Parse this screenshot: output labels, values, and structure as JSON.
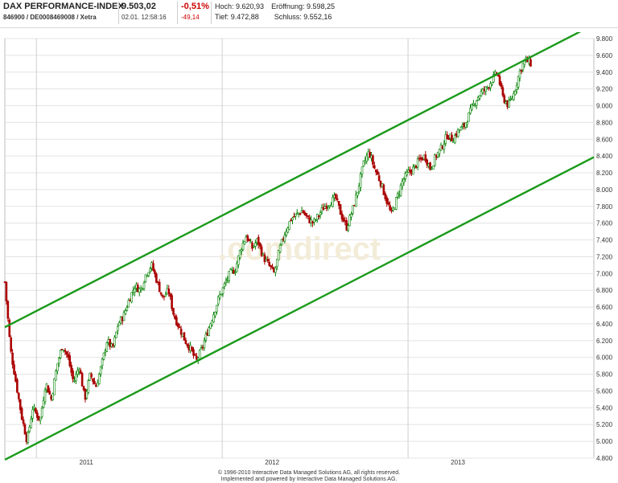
{
  "header": {
    "title": "DAX PERFORMANCE-INDEX",
    "identifier": "846900 / DE0008469008 / Xetra",
    "price": "9.503,02",
    "timestamp": "02.01. 12:58:16",
    "change_pct": "-0,51%",
    "change_abs": "-49,14",
    "high_label": "Hoch:",
    "high_value": "9.620,93",
    "open_label": "Eröffnung:",
    "open_value": "9.598,25",
    "low_label": "Tief:",
    "low_value": "9.472,88",
    "close_label": "Schluss:",
    "close_value": "9.552,16"
  },
  "watermark": ".comdirect",
  "footer": {
    "line1": "© 1996-2010 Interactive Data Managed Solutions AG, all rights reserved.",
    "line2": "Implemented and powered by Interactive Data Managed Solutions AG."
  },
  "colors": {
    "up": "#008000",
    "down": "#aa0000",
    "channel": "#1a9a1a",
    "grid": "#e3e3e3"
  },
  "chart_data": {
    "type": "candlestick",
    "title": "",
    "xlabel": "",
    "ylabel": "",
    "ylim": [
      4800,
      9800
    ],
    "xlim": [
      2010.83,
      2014.0
    ],
    "grid": true,
    "x_ticks": [
      {
        "label": "2011",
        "x": 2011.0
      },
      {
        "label": "2012",
        "x": 2012.0
      },
      {
        "label": "2013",
        "x": 2013.0
      }
    ],
    "y_ticks": [
      {
        "label": "4.800",
        "value": 4800
      },
      {
        "label": "5.000",
        "value": 5000
      },
      {
        "label": "5.200",
        "value": 5200
      },
      {
        "label": "5.400",
        "value": 5400
      },
      {
        "label": "5.600",
        "value": 5600
      },
      {
        "label": "5.800",
        "value": 5800
      },
      {
        "label": "6.000",
        "value": 6000
      },
      {
        "label": "6.200",
        "value": 6200
      },
      {
        "label": "6.400",
        "value": 6400
      },
      {
        "label": "6.600",
        "value": 6600
      },
      {
        "label": "6.800",
        "value": 6800
      },
      {
        "label": "7.000",
        "value": 7000
      },
      {
        "label": "7.200",
        "value": 7200
      },
      {
        "label": "7.400",
        "value": 7400
      },
      {
        "label": "7.600",
        "value": 7600
      },
      {
        "label": "7.800",
        "value": 7800
      },
      {
        "label": "8.000",
        "value": 8000
      },
      {
        "label": "8.200",
        "value": 8200
      },
      {
        "label": "8.400",
        "value": 8400
      },
      {
        "label": "8.600",
        "value": 8600
      },
      {
        "label": "8.800",
        "value": 8800
      },
      {
        "label": "9.000",
        "value": 9000
      },
      {
        "label": "9.200",
        "value": 9200
      },
      {
        "label": "9.400",
        "value": 9400
      },
      {
        "label": "9.600",
        "value": 9600
      },
      {
        "label": "9.800",
        "value": 9800
      }
    ],
    "series": [
      {
        "points": [
          [
            2010.83,
            6900
          ],
          [
            2010.86,
            6100
          ],
          [
            2010.89,
            5700
          ],
          [
            2010.92,
            5300
          ],
          [
            2010.95,
            5000
          ],
          [
            2010.98,
            5400
          ],
          [
            2011.02,
            5250
          ],
          [
            2011.05,
            5700
          ],
          [
            2011.08,
            5500
          ],
          [
            2011.11,
            5900
          ],
          [
            2011.14,
            6150
          ],
          [
            2011.17,
            6000
          ],
          [
            2011.2,
            5700
          ],
          [
            2011.23,
            5900
          ],
          [
            2011.26,
            5500
          ],
          [
            2011.29,
            5800
          ],
          [
            2011.32,
            5650
          ],
          [
            2011.35,
            5900
          ],
          [
            2011.38,
            6200
          ],
          [
            2011.41,
            6100
          ],
          [
            2011.44,
            6400
          ],
          [
            2011.47,
            6500
          ],
          [
            2011.5,
            6700
          ],
          [
            2011.53,
            6850
          ],
          [
            2011.56,
            6800
          ],
          [
            2011.59,
            7000
          ],
          [
            2011.62,
            7100
          ],
          [
            2011.65,
            6900
          ],
          [
            2011.68,
            6700
          ],
          [
            2011.71,
            6800
          ],
          [
            2011.74,
            6500
          ],
          [
            2011.77,
            6350
          ],
          [
            2011.8,
            6200
          ],
          [
            2011.83,
            6100
          ],
          [
            2011.86,
            5950
          ],
          [
            2011.89,
            6100
          ],
          [
            2011.92,
            6300
          ],
          [
            2011.95,
            6500
          ],
          [
            2011.98,
            6700
          ],
          [
            2012.01,
            6850
          ],
          [
            2012.04,
            7000
          ],
          [
            2012.07,
            7050
          ],
          [
            2012.1,
            7300
          ],
          [
            2012.13,
            7450
          ],
          [
            2012.16,
            7300
          ],
          [
            2012.19,
            7400
          ],
          [
            2012.22,
            7200
          ],
          [
            2012.25,
            7100
          ],
          [
            2012.28,
            7000
          ],
          [
            2012.31,
            7300
          ],
          [
            2012.34,
            7500
          ],
          [
            2012.37,
            7650
          ],
          [
            2012.4,
            7700
          ],
          [
            2012.43,
            7750
          ],
          [
            2012.46,
            7650
          ],
          [
            2012.49,
            7600
          ],
          [
            2012.52,
            7700
          ],
          [
            2012.55,
            7800
          ],
          [
            2012.58,
            7850
          ],
          [
            2012.61,
            7900
          ],
          [
            2012.64,
            7700
          ],
          [
            2012.67,
            7550
          ],
          [
            2012.7,
            7750
          ],
          [
            2012.73,
            8000
          ],
          [
            2012.76,
            8300
          ],
          [
            2012.79,
            8450
          ],
          [
            2012.82,
            8250
          ],
          [
            2012.85,
            8100
          ],
          [
            2012.88,
            7900
          ],
          [
            2012.91,
            7700
          ],
          [
            2012.94,
            7900
          ],
          [
            2012.97,
            8100
          ],
          [
            2013.0,
            8200
          ],
          [
            2013.03,
            8250
          ],
          [
            2013.06,
            8350
          ],
          [
            2013.09,
            8400
          ],
          [
            2013.12,
            8250
          ],
          [
            2013.15,
            8400
          ],
          [
            2013.18,
            8500
          ],
          [
            2013.21,
            8650
          ],
          [
            2013.24,
            8600
          ],
          [
            2013.27,
            8700
          ],
          [
            2013.3,
            8750
          ],
          [
            2013.33,
            8900
          ],
          [
            2013.36,
            9050
          ],
          [
            2013.39,
            9150
          ],
          [
            2013.42,
            9200
          ],
          [
            2013.45,
            9300
          ],
          [
            2013.48,
            9400
          ],
          [
            2013.51,
            9100
          ],
          [
            2013.54,
            9000
          ],
          [
            2013.57,
            9150
          ],
          [
            2013.6,
            9400
          ],
          [
            2013.63,
            9550
          ],
          [
            2013.66,
            9503
          ]
        ]
      }
    ],
    "channel_lines": [
      {
        "name": "upper",
        "from": [
          2010.83,
          6360
        ],
        "to": [
          2013.66,
          9580
        ]
      },
      {
        "name": "lower",
        "from": [
          2010.83,
          4780
        ],
        "to": [
          2013.66,
          8000
        ]
      }
    ]
  }
}
